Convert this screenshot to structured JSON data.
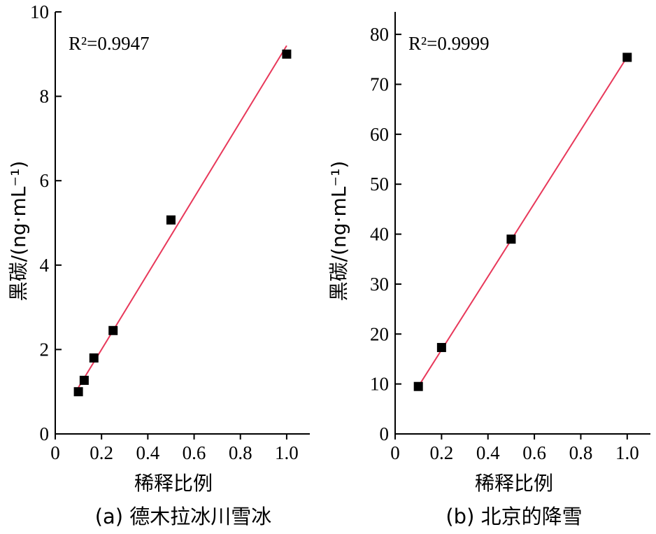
{
  "chart_data": [
    {
      "type": "scatter",
      "panel": "(a) 德木拉冰川雪冰",
      "xlabel": "稀释比例",
      "ylabel": "黑碳/(ng·mL⁻¹)",
      "r2_label": "R²=0.9947",
      "xlim": [
        0,
        1.1
      ],
      "ylim": [
        0,
        10
      ],
      "xticks": [
        0,
        0.2,
        0.4,
        0.6,
        0.8,
        1.0
      ],
      "xtick_labels": [
        "0",
        "0.2",
        "0.4",
        "0.6",
        "0.8",
        "1.0"
      ],
      "yticks": [
        0,
        2,
        4,
        6,
        8,
        10
      ],
      "ytick_labels": [
        "0",
        "2",
        "4",
        "6",
        "8",
        "10"
      ],
      "series": [
        {
          "points": [
            {
              "x": 0.1,
              "y": 1.0
            },
            {
              "x": 0.125,
              "y": 1.27
            },
            {
              "x": 0.167,
              "y": 1.8
            },
            {
              "x": 0.25,
              "y": 2.45
            },
            {
              "x": 0.5,
              "y": 5.07
            },
            {
              "x": 1.0,
              "y": 9.0
            }
          ],
          "fit_line": {
            "x": [
              0.1,
              1.0
            ],
            "y": [
              1.1,
              9.2
            ]
          },
          "fit_color": "#e8385a",
          "marker_color": "#000000"
        }
      ]
    },
    {
      "type": "scatter",
      "panel": "(b) 北京的降雪",
      "xlabel": "稀释比例",
      "ylabel": "黑碳/(ng·mL⁻¹)",
      "r2_label": "R²=0.9999",
      "xlim": [
        0,
        1.1
      ],
      "ylim": [
        0,
        85
      ],
      "xticks": [
        0,
        0.2,
        0.4,
        0.6,
        0.8,
        1.0
      ],
      "xtick_labels": [
        "0",
        "0.2",
        "0.4",
        "0.6",
        "0.8",
        "1.0"
      ],
      "yticks": [
        0,
        10,
        20,
        30,
        40,
        50,
        60,
        70,
        80
      ],
      "ytick_labels": [
        "0",
        "10",
        "20",
        "30",
        "40",
        "50",
        "60",
        "70",
        "80"
      ],
      "series": [
        {
          "points": [
            {
              "x": 0.1,
              "y": 9.5
            },
            {
              "x": 0.2,
              "y": 17.3
            },
            {
              "x": 0.5,
              "y": 39.0
            },
            {
              "x": 1.0,
              "y": 75.4
            }
          ],
          "fit_line": {
            "x": [
              0.1,
              1.0
            ],
            "y": [
              9.5,
              75.5
            ]
          },
          "fit_color": "#e8385a",
          "marker_color": "#000000"
        }
      ]
    }
  ]
}
